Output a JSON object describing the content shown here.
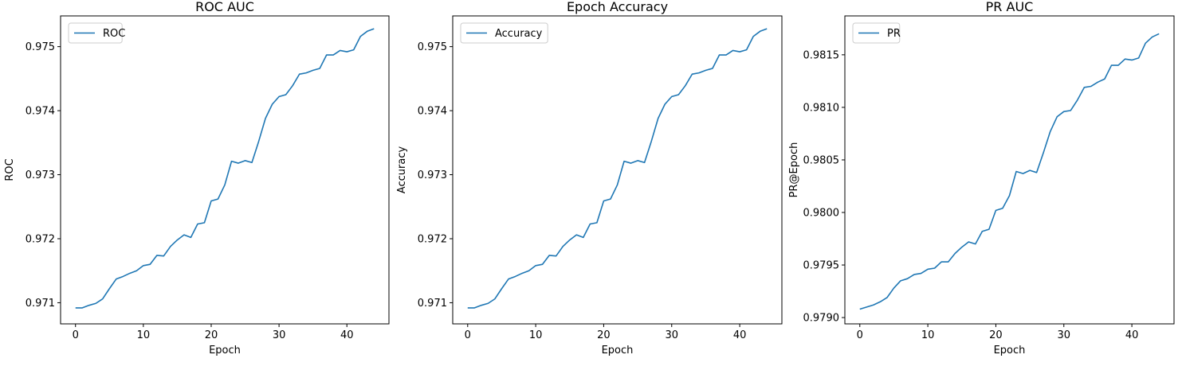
{
  "style": {
    "line_color": "#1f77b4"
  },
  "chart_data": [
    {
      "type": "line",
      "title": "ROC AUC",
      "xlabel": "Epoch",
      "ylabel": "ROC",
      "xlim": [
        -2.2,
        46.2
      ],
      "ylim": [
        0.97067,
        0.97548
      ],
      "xticks": [
        0,
        10,
        20,
        30,
        40
      ],
      "xtick_labels": [
        "0",
        "10",
        "20",
        "30",
        "40"
      ],
      "yticks": [
        0.971,
        0.972,
        0.973,
        0.974,
        0.975
      ],
      "ytick_labels": [
        "0.971",
        "0.972",
        "0.973",
        "0.974",
        "0.975"
      ],
      "legend": "top-left",
      "grid": false,
      "series": [
        {
          "name": "ROC",
          "x": [
            0,
            1,
            2,
            3,
            4,
            5,
            6,
            7,
            8,
            9,
            10,
            11,
            12,
            13,
            14,
            15,
            16,
            17,
            18,
            19,
            20,
            21,
            22,
            23,
            24,
            25,
            26,
            27,
            28,
            29,
            30,
            31,
            32,
            33,
            34,
            35,
            36,
            37,
            38,
            39,
            40,
            41,
            42,
            43,
            44
          ],
          "y": [
            0.97092,
            0.97092,
            0.97096,
            0.97099,
            0.97106,
            0.97122,
            0.97137,
            0.97141,
            0.97146,
            0.9715,
            0.97158,
            0.9716,
            0.97174,
            0.97173,
            0.97188,
            0.97198,
            0.97206,
            0.97202,
            0.97223,
            0.97225,
            0.97259,
            0.97262,
            0.97284,
            0.97321,
            0.97318,
            0.97322,
            0.97319,
            0.97352,
            0.97388,
            0.9741,
            0.97422,
            0.97425,
            0.97439,
            0.97457,
            0.97459,
            0.97463,
            0.97466,
            0.97487,
            0.97487,
            0.97494,
            0.97492,
            0.97495,
            0.97516,
            0.97524,
            0.97528
          ]
        }
      ]
    },
    {
      "type": "line",
      "title": "Epoch Accuracy",
      "xlabel": "Epoch",
      "ylabel": "Accuracy",
      "xlim": [
        -2.2,
        46.2
      ],
      "ylim": [
        0.97067,
        0.97548
      ],
      "xticks": [
        0,
        10,
        20,
        30,
        40
      ],
      "xtick_labels": [
        "0",
        "10",
        "20",
        "30",
        "40"
      ],
      "yticks": [
        0.971,
        0.972,
        0.973,
        0.974,
        0.975
      ],
      "ytick_labels": [
        "0.971",
        "0.972",
        "0.973",
        "0.974",
        "0.975"
      ],
      "legend": "top-left",
      "grid": false,
      "series": [
        {
          "name": "Accuracy",
          "x": [
            0,
            1,
            2,
            3,
            4,
            5,
            6,
            7,
            8,
            9,
            10,
            11,
            12,
            13,
            14,
            15,
            16,
            17,
            18,
            19,
            20,
            21,
            22,
            23,
            24,
            25,
            26,
            27,
            28,
            29,
            30,
            31,
            32,
            33,
            34,
            35,
            36,
            37,
            38,
            39,
            40,
            41,
            42,
            43,
            44
          ],
          "y": [
            0.97092,
            0.97092,
            0.97096,
            0.97099,
            0.97106,
            0.97122,
            0.97137,
            0.97141,
            0.97146,
            0.9715,
            0.97158,
            0.9716,
            0.97174,
            0.97173,
            0.97188,
            0.97198,
            0.97206,
            0.97202,
            0.97223,
            0.97225,
            0.97259,
            0.97262,
            0.97284,
            0.97321,
            0.97318,
            0.97322,
            0.97319,
            0.97352,
            0.97388,
            0.9741,
            0.97422,
            0.97425,
            0.97439,
            0.97457,
            0.97459,
            0.97463,
            0.97466,
            0.97487,
            0.97487,
            0.97494,
            0.97492,
            0.97495,
            0.97516,
            0.97524,
            0.97528
          ]
        }
      ]
    },
    {
      "type": "line",
      "title": "PR AUC",
      "xlabel": "Epoch",
      "ylabel": "PR@Epoch",
      "xlim": [
        -2.2,
        46.2
      ],
      "ylim": [
        0.97894,
        0.98187
      ],
      "xticks": [
        0,
        10,
        20,
        30,
        40
      ],
      "xtick_labels": [
        "0",
        "10",
        "20",
        "30",
        "40"
      ],
      "yticks": [
        0.979,
        0.9795,
        0.98,
        0.9805,
        0.981,
        0.9815
      ],
      "ytick_labels": [
        "0.9790",
        "0.9795",
        "0.9800",
        "0.9805",
        "0.9810",
        "0.9815"
      ],
      "legend": "top-left",
      "grid": false,
      "series": [
        {
          "name": "PR",
          "x": [
            0,
            1,
            2,
            3,
            4,
            5,
            6,
            7,
            8,
            9,
            10,
            11,
            12,
            13,
            14,
            15,
            16,
            17,
            18,
            19,
            20,
            21,
            22,
            23,
            24,
            25,
            26,
            27,
            28,
            29,
            30,
            31,
            32,
            33,
            34,
            35,
            36,
            37,
            38,
            39,
            40,
            41,
            42,
            43,
            44
          ],
          "y": [
            0.97908,
            0.9791,
            0.97912,
            0.97915,
            0.97919,
            0.97928,
            0.97935,
            0.97937,
            0.97941,
            0.97942,
            0.97946,
            0.97947,
            0.97953,
            0.97953,
            0.97961,
            0.97967,
            0.97972,
            0.9797,
            0.97982,
            0.97984,
            0.98002,
            0.98004,
            0.98016,
            0.98039,
            0.98037,
            0.9804,
            0.98038,
            0.98057,
            0.98077,
            0.98091,
            0.98096,
            0.98097,
            0.98107,
            0.98119,
            0.9812,
            0.98124,
            0.98127,
            0.9814,
            0.9814,
            0.98146,
            0.98145,
            0.98147,
            0.98161,
            0.98167,
            0.9817
          ]
        }
      ]
    }
  ]
}
